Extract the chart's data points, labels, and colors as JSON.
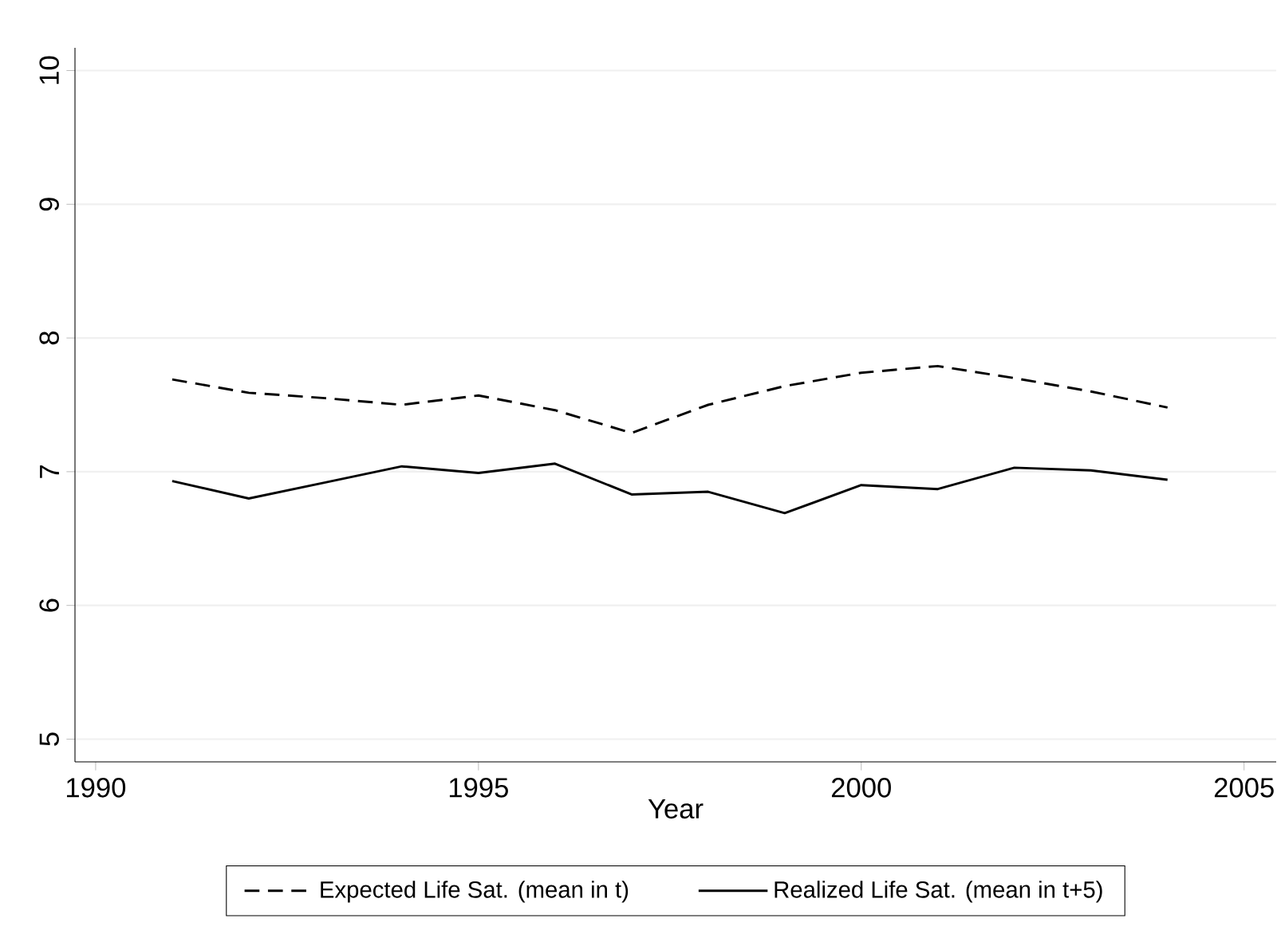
{
  "chart_data": {
    "type": "line",
    "xlabel": "Year",
    "xlim": [
      1989.73,
      2005.42
    ],
    "ylim": [
      4.83,
      10.17
    ],
    "xticks": [
      1990,
      1995,
      2000,
      2005
    ],
    "yticks": [
      5,
      6,
      7,
      8,
      9,
      10
    ],
    "grid": "y",
    "legend": "bottom",
    "marker": "none",
    "x": [
      1991,
      1992,
      1993,
      1994,
      1995,
      1996,
      1997,
      1998,
      1999,
      2000,
      2001,
      2002,
      2003,
      2004
    ],
    "series": [
      {
        "name": "Expected Life Sat. (mean in t)",
        "color": "#000000",
        "line_style": "dashed",
        "values": [
          7.69,
          7.59,
          7.55,
          7.5,
          7.57,
          7.46,
          7.29,
          7.5,
          7.64,
          7.74,
          7.79,
          7.7,
          7.6,
          7.48
        ]
      },
      {
        "name": "Realized Life Sat. (mean in t+5)",
        "color": "#000000",
        "line_style": "solid",
        "values": [
          6.93,
          6.8,
          6.92,
          7.04,
          6.99,
          7.06,
          6.83,
          6.85,
          6.69,
          6.9,
          6.87,
          7.03,
          7.01,
          6.94
        ]
      }
    ]
  }
}
